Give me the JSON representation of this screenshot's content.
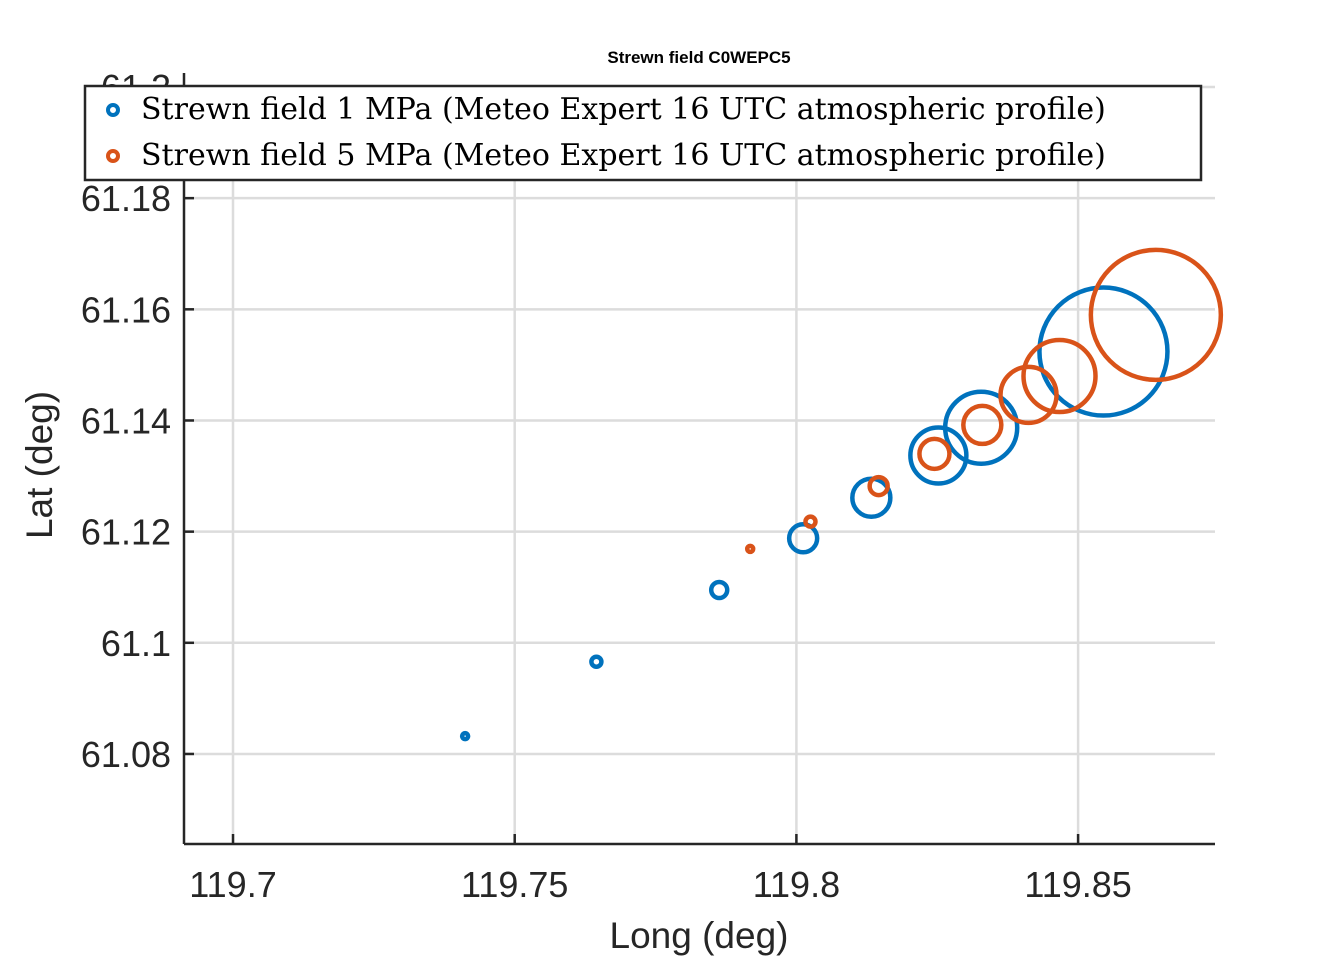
{
  "chart_data": {
    "type": "scatter",
    "title": "Strewn field C0WEPC5",
    "xlabel": "Long (deg)",
    "ylabel": "Lat (deg)",
    "xlim": [
      119.6913,
      119.8743
    ],
    "ylim": [
      61.0638,
      61.2
    ],
    "xticks": [
      119.7,
      119.75,
      119.8,
      119.85
    ],
    "xtick_labels": [
      "119.7",
      "119.75",
      "119.8",
      "119.85"
    ],
    "yticks": [
      61.08,
      61.1,
      61.12,
      61.14,
      61.16,
      61.18,
      61.2
    ],
    "ytick_labels": [
      "61.08",
      "61.1",
      "61.12",
      "61.14",
      "61.16",
      "61.18",
      "61.2"
    ],
    "grid": true,
    "legend_placement": "top",
    "series": [
      {
        "name": "Strewn field 1 MPa (Meteo Expert 16 UTC atmospheric profile)",
        "color": "#0072BD",
        "points": [
          {
            "x": 119.7412,
            "y": 61.0832,
            "marker_size": 3
          },
          {
            "x": 119.7645,
            "y": 61.0966,
            "marker_size": 5
          },
          {
            "x": 119.7863,
            "y": 61.1095,
            "marker_size": 8
          },
          {
            "x": 119.8012,
            "y": 61.1188,
            "marker_size": 14
          },
          {
            "x": 119.8133,
            "y": 61.1261,
            "marker_size": 19
          },
          {
            "x": 119.8252,
            "y": 61.1337,
            "marker_size": 28
          },
          {
            "x": 119.8328,
            "y": 61.1387,
            "marker_size": 36
          },
          {
            "x": 119.8545,
            "y": 61.1524,
            "marker_size": 64
          }
        ]
      },
      {
        "name": "Strewn field 5 MPa (Meteo Expert 16 UTC atmospheric profile)",
        "color": "#D95319",
        "points": [
          {
            "x": 119.7918,
            "y": 61.1169,
            "marker_size": 3
          },
          {
            "x": 119.8025,
            "y": 61.1218,
            "marker_size": 5
          },
          {
            "x": 119.8146,
            "y": 61.1282,
            "marker_size": 9
          },
          {
            "x": 119.8245,
            "y": 61.134,
            "marker_size": 15
          },
          {
            "x": 119.833,
            "y": 61.1392,
            "marker_size": 19
          },
          {
            "x": 119.8412,
            "y": 61.1446,
            "marker_size": 28
          },
          {
            "x": 119.8467,
            "y": 61.148,
            "marker_size": 36
          },
          {
            "x": 119.8638,
            "y": 61.159,
            "marker_size": 65
          }
        ]
      }
    ]
  }
}
